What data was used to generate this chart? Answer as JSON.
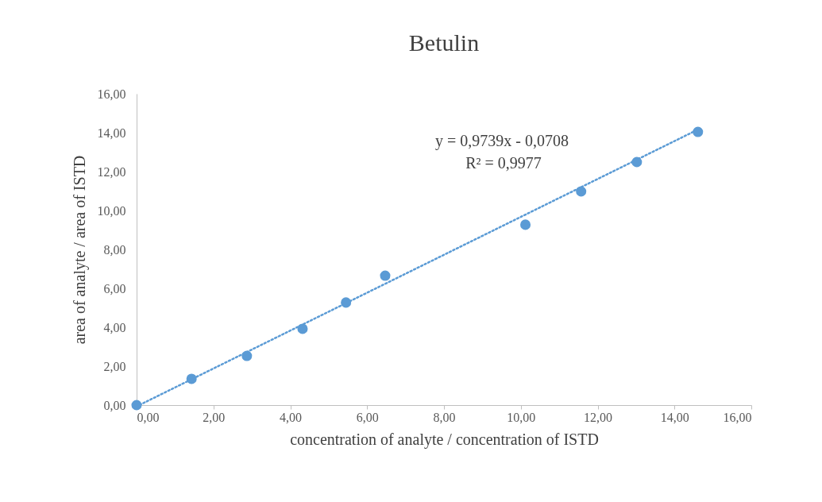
{
  "chart_data": {
    "type": "scatter",
    "title": "Betulin",
    "xlabel": "concentration of analyte  / concentration of ISTD",
    "ylabel": "area of analyte  / area of ISTD",
    "xlim": [
      0,
      16
    ],
    "ylim": [
      0,
      16
    ],
    "xticks": [
      {
        "value": 0,
        "label": "0,00"
      },
      {
        "value": 2,
        "label": "2,00"
      },
      {
        "value": 4,
        "label": "4,00"
      },
      {
        "value": 6,
        "label": "6,00"
      },
      {
        "value": 8,
        "label": "8,00"
      },
      {
        "value": 10,
        "label": "10,00"
      },
      {
        "value": 12,
        "label": "12,00"
      },
      {
        "value": 14,
        "label": "14,00"
      },
      {
        "value": 16,
        "label": "16,00"
      }
    ],
    "yticks": [
      {
        "value": 0,
        "label": "0,00"
      },
      {
        "value": 2,
        "label": "2,00"
      },
      {
        "value": 4,
        "label": "4,00"
      },
      {
        "value": 6,
        "label": "6,00"
      },
      {
        "value": 8,
        "label": "8,00"
      },
      {
        "value": 10,
        "label": "10,00"
      },
      {
        "value": 12,
        "label": "12,00"
      },
      {
        "value": 14,
        "label": "14,00"
      },
      {
        "value": 16,
        "label": "16,00"
      }
    ],
    "grid": false,
    "series": [
      {
        "marker": "circle",
        "color": "#5b9bd5",
        "x": [
          0,
          1.43,
          2.87,
          4.32,
          5.45,
          6.47,
          10.12,
          11.57,
          13.02,
          14.61
        ],
        "values": [
          0,
          1.35,
          2.53,
          3.92,
          5.27,
          6.65,
          9.27,
          10.98,
          12.49,
          14.04
        ]
      },
      {
        "type": "line",
        "marker": "none",
        "color": "#5b9bd5",
        "line_style": "dotted",
        "x": [
          0.08,
          14.61
        ],
        "values": [
          0.01,
          14.16
        ]
      }
    ],
    "annotations": [
      "y = 0,9739x - 0,0708",
      "R² = 0,9977"
    ]
  }
}
